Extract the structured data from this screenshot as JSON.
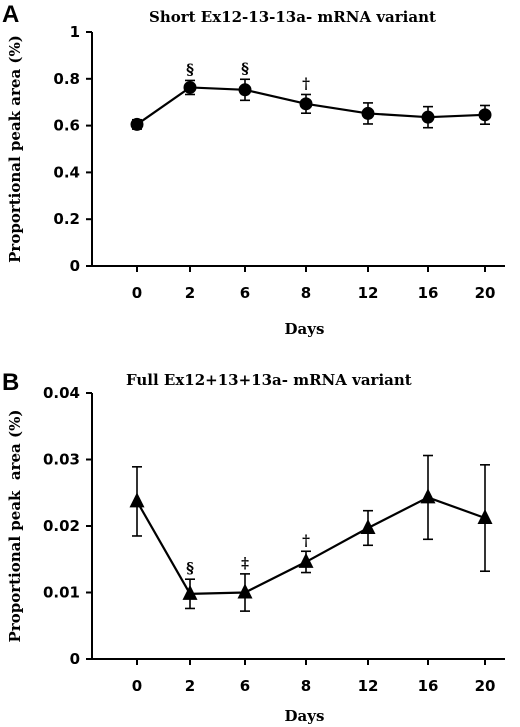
{
  "chart_data": [
    {
      "type": "line",
      "panel": "A",
      "title": "Short Ex12-13-13a- mRNA variant",
      "xlabel": "Days",
      "ylabel": "Proportional peak area (%)",
      "categories": [
        "0",
        "2",
        "6",
        "8",
        "12",
        "16",
        "20"
      ],
      "ylim": [
        0,
        1
      ],
      "yticks": [
        "0",
        "0.2",
        "0.4",
        "0.6",
        "0.8",
        "1"
      ],
      "yticks_values": [
        0,
        0.2,
        0.4,
        0.6,
        0.8,
        1
      ],
      "marker": "circle",
      "series": [
        {
          "values": [
            0.605,
            0.763,
            0.753,
            0.693,
            0.652,
            0.636,
            0.646
          ],
          "errors": [
            0.02,
            0.03,
            0.045,
            0.04,
            0.045,
            0.045,
            0.04
          ]
        }
      ],
      "annotations": [
        "",
        "§",
        "§",
        "†",
        "",
        "",
        ""
      ],
      "grid": false
    },
    {
      "type": "line",
      "panel": "B",
      "title": "Full Ex12+13+13a- mRNA variant",
      "xlabel": "Days",
      "ylabel": "Proportional peak  area (%)",
      "categories": [
        "0",
        "2",
        "6",
        "8",
        "12",
        "16",
        "20"
      ],
      "ylim": [
        0,
        0.04
      ],
      "yticks": [
        "0",
        "0.01",
        "0.02",
        "0.03",
        "0.04"
      ],
      "yticks_values": [
        0,
        0.01,
        0.02,
        0.03,
        0.04
      ],
      "marker": "triangle",
      "series": [
        {
          "values": [
            0.0237,
            0.0098,
            0.01,
            0.0146,
            0.0197,
            0.0243,
            0.0212
          ],
          "errors": [
            0.0052,
            0.0022,
            0.0028,
            0.0016,
            0.0026,
            0.0063,
            0.008
          ]
        }
      ],
      "annotations": [
        "",
        "§",
        "‡",
        "†",
        "",
        "",
        ""
      ],
      "grid": false
    }
  ]
}
